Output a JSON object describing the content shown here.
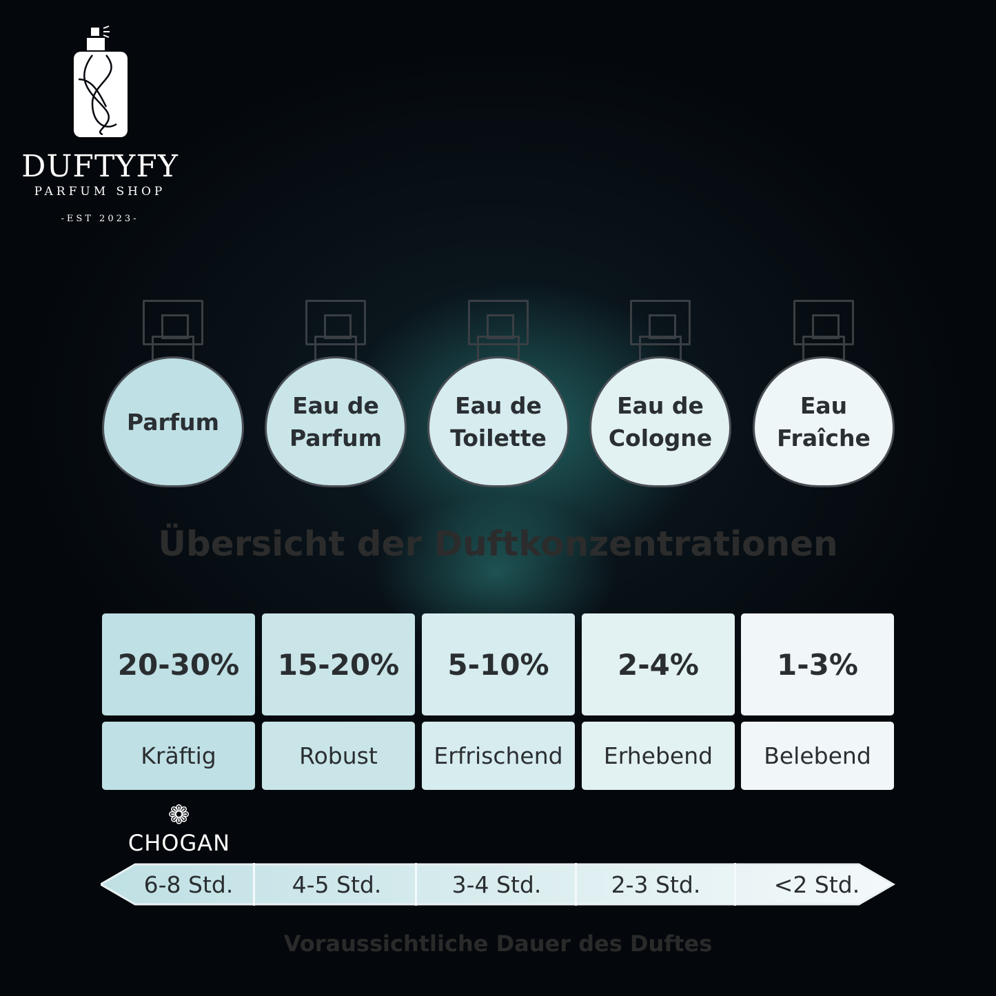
{
  "logo": {
    "brand": "DUFTYFY",
    "subtitle": "PARFUM SHOP",
    "established": "-EST 2023-"
  },
  "bottles": [
    {
      "name": "Parfum",
      "color": "#bfe0e4"
    },
    {
      "name": "Eau de\nParfum",
      "color": "#c9e5e8"
    },
    {
      "name": "Eau de\nToilette",
      "color": "#d6ecee"
    },
    {
      "name": "Eau de\nCologne",
      "color": "#e2f1f2"
    },
    {
      "name": "Eau\nFraîche",
      "color": "#eef6f7"
    }
  ],
  "title": "Übersicht der Duftkonzentrationen",
  "concentrations": [
    {
      "percent": "20-30%",
      "character": "Kräftig",
      "color": "#bfe0e4"
    },
    {
      "percent": "15-20%",
      "character": "Robust",
      "color": "#c9e5e8"
    },
    {
      "percent": "5-10%",
      "character": "Erfrischend",
      "color": "#d6ecee"
    },
    {
      "percent": "2-4%",
      "character": "Erhebend",
      "color": "#e2f1f2"
    },
    {
      "percent": "1-3%",
      "character": "Belebend",
      "color": "#f1f7f8"
    }
  ],
  "partner_logo": "CHOGAN",
  "durations": [
    "6-8 Std.",
    "4-5 Std.",
    "3-4 Std.",
    "2-3 Std.",
    "<2 Std."
  ],
  "footer": "Voraussichtliche Dauer des Duftes"
}
